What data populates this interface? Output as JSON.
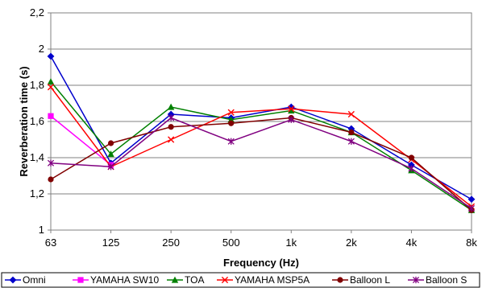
{
  "chart_data": {
    "type": "line",
    "xlabel": "Frequency (Hz)",
    "ylabel": "Reverberation time (s)",
    "categories": [
      "63",
      "125",
      "250",
      "500",
      "1k",
      "2k",
      "4k",
      "8k"
    ],
    "ylim": [
      1,
      2.2
    ],
    "yticks": [
      "1",
      "1,2",
      "1,4",
      "1,6",
      "1,8",
      "2",
      "2,2"
    ],
    "grid": true,
    "legend_position": "bottom",
    "series": [
      {
        "name": "Omni",
        "color": "#0000cc",
        "marker": "diamond",
        "values": [
          1.96,
          1.37,
          1.64,
          1.62,
          1.68,
          1.56,
          1.36,
          1.17
        ]
      },
      {
        "name": "YAMAHA SW10",
        "color": "#ff00ff",
        "marker": "square",
        "values": [
          1.63,
          1.36,
          null,
          null,
          null,
          null,
          null,
          null
        ]
      },
      {
        "name": "TOA",
        "color": "#008000",
        "marker": "triangle",
        "values": [
          1.82,
          1.42,
          1.68,
          1.61,
          1.66,
          1.54,
          1.33,
          1.11
        ]
      },
      {
        "name": "YAMAHA MSP5A",
        "color": "#ff0000",
        "marker": "x",
        "values": [
          1.79,
          1.35,
          1.5,
          1.65,
          1.67,
          1.64,
          1.39,
          1.13
        ]
      },
      {
        "name": "Balloon L",
        "color": "#800000",
        "marker": "circle",
        "values": [
          1.28,
          1.48,
          1.57,
          1.59,
          1.62,
          1.54,
          1.4,
          1.11
        ]
      },
      {
        "name": "Balloon S",
        "color": "#800080",
        "marker": "star",
        "values": [
          1.37,
          1.35,
          1.62,
          1.49,
          1.61,
          1.49,
          1.34,
          1.12
        ]
      }
    ]
  }
}
